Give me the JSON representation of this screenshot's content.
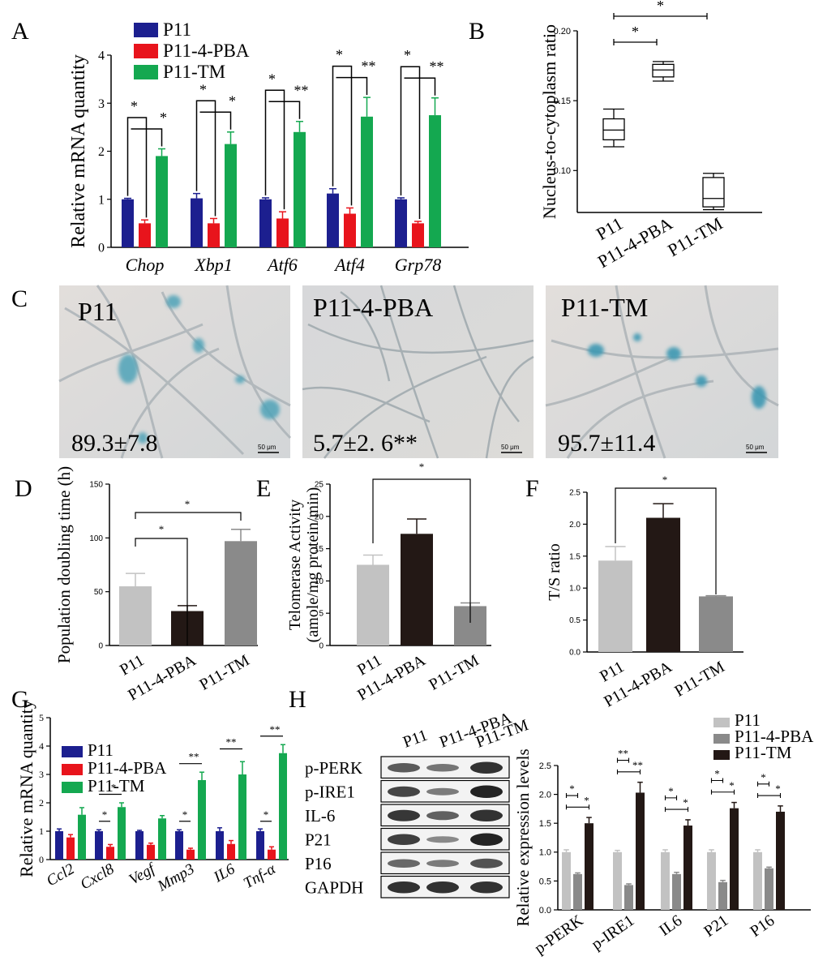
{
  "panel_labels": {
    "A": "A",
    "B": "B",
    "C": "C",
    "D": "D",
    "E": "E",
    "F": "F",
    "G": "G",
    "H": "H"
  },
  "colors": {
    "p11_dark": "#1c1f8f",
    "p11_4pba_red": "#e8141c",
    "p11_tm_green": "#14a850",
    "gray_light": "#c2c2c2",
    "gray_mid": "#8a8a8a",
    "black_bar": "#231815"
  },
  "chart_data": [
    {
      "id": "A",
      "type": "bar",
      "ylabel": "Relative mRNA quantity",
      "ylim": [
        0,
        4
      ],
      "yticks": [
        "0",
        "1",
        "2",
        "3",
        "4"
      ],
      "categories": [
        "Chop",
        "Xbp1",
        "Atf6",
        "Atf4",
        "Grp78"
      ],
      "legend": [
        "P11",
        "P11-4-PBA",
        "P11-TM"
      ],
      "series": [
        {
          "name": "P11",
          "values": [
            1.0,
            1.02,
            1.0,
            1.12,
            1.0
          ],
          "err": [
            0.02,
            0.1,
            0.03,
            0.1,
            0.03
          ]
        },
        {
          "name": "P11-4-PBA",
          "values": [
            0.5,
            0.5,
            0.6,
            0.7,
            0.5
          ],
          "err": [
            0.07,
            0.1,
            0.14,
            0.12,
            0.04
          ]
        },
        {
          "name": "P11-TM",
          "values": [
            1.9,
            2.15,
            2.4,
            2.72,
            2.75
          ],
          "err": [
            0.15,
            0.25,
            0.22,
            0.4,
            0.36
          ]
        }
      ],
      "sig": [
        [
          "*",
          "*"
        ],
        [
          "*",
          "*"
        ],
        [
          "*",
          "**"
        ],
        [
          "*",
          "**"
        ],
        [
          "*",
          "**"
        ]
      ]
    },
    {
      "id": "B",
      "type": "box",
      "ylabel": "Nucleus-to-cytoplasm ratio",
      "ylim": [
        0.07,
        0.2
      ],
      "yticks": [
        "0.10",
        "0.15",
        "0.20"
      ],
      "categories": [
        "P11",
        "P11-4-PBA",
        "P11-TM"
      ],
      "boxes": [
        {
          "min": 0.117,
          "q1": 0.122,
          "median": 0.129,
          "q3": 0.137,
          "max": 0.144
        },
        {
          "min": 0.164,
          "q1": 0.167,
          "median": 0.172,
          "q3": 0.176,
          "max": 0.178
        },
        {
          "min": 0.072,
          "q1": 0.074,
          "median": 0.08,
          "q3": 0.095,
          "max": 0.098
        }
      ],
      "sig": [
        "*",
        "*"
      ]
    },
    {
      "id": "D",
      "type": "bar",
      "ylabel": "Population doubling time (h)",
      "ylim": [
        0,
        150
      ],
      "yticks": [
        "0",
        "50",
        "100",
        "150"
      ],
      "categories": [
        "P11",
        "P11-4-PBA",
        "P11-TM"
      ],
      "values": [
        55,
        32,
        97
      ],
      "err": [
        12,
        5,
        11
      ],
      "sig": [
        "*",
        "*"
      ]
    },
    {
      "id": "E",
      "type": "bar",
      "ylabel_lines": [
        "Telomerase Activity",
        "(amole/mg protein/min)"
      ],
      "ylim": [
        0,
        25
      ],
      "yticks": [
        "0",
        "5",
        "10",
        "15",
        "20",
        "25"
      ],
      "categories": [
        "P11",
        "P11-4-PBA",
        "P11-TM"
      ],
      "values": [
        12.5,
        17.3,
        6.1
      ],
      "err": [
        1.5,
        2.3,
        0.5
      ],
      "sig": [
        "*"
      ]
    },
    {
      "id": "F",
      "type": "bar",
      "ylabel": "T/S ratio",
      "ylim": [
        0,
        2.5
      ],
      "yticks": [
        "0.0",
        "0.5",
        "1.0",
        "1.5",
        "2.0",
        "2.5"
      ],
      "categories": [
        "P11",
        "P11-4-PBA",
        "P11-TM"
      ],
      "values": [
        1.43,
        2.1,
        0.87
      ],
      "err": [
        0.22,
        0.22,
        0.01
      ],
      "sig": [
        "*"
      ]
    },
    {
      "id": "G",
      "type": "bar",
      "ylabel": "Relative mRNA quantity",
      "ylim": [
        0,
        5
      ],
      "yticks": [
        "0",
        "1",
        "2",
        "3",
        "4",
        "5"
      ],
      "categories": [
        "Ccl2",
        "Cxcl8",
        "Vegf",
        "Mmp3",
        "IL6",
        "Tnf-α"
      ],
      "legend": [
        "P11",
        "P11-4-PBA",
        "P11-TM"
      ],
      "series": [
        {
          "name": "P11",
          "values": [
            1.0,
            1.0,
            1.0,
            1.0,
            1.0,
            1.0
          ],
          "err": [
            0.08,
            0.05,
            0.03,
            0.05,
            0.12,
            0.08
          ]
        },
        {
          "name": "P11-4-PBA",
          "values": [
            0.78,
            0.45,
            0.52,
            0.35,
            0.55,
            0.35
          ],
          "err": [
            0.1,
            0.08,
            0.06,
            0.05,
            0.12,
            0.1
          ]
        },
        {
          "name": "P11-TM",
          "values": [
            1.58,
            1.85,
            1.45,
            2.8,
            3.0,
            3.75
          ],
          "err": [
            0.25,
            0.15,
            0.1,
            0.28,
            0.45,
            0.3
          ]
        }
      ],
      "sig": [
        null,
        [
          "*",
          "*"
        ],
        null,
        [
          "*",
          "**"
        ],
        [
          "**"
        ],
        [
          "*",
          "**"
        ]
      ]
    },
    {
      "id": "H",
      "type": "bar",
      "ylabel": "Relative expression levels",
      "ylim": [
        0,
        2.5
      ],
      "yticks": [
        "0.0",
        "0.5",
        "1.0",
        "1.5",
        "2.0",
        "2.5"
      ],
      "categories": [
        "p-PERK",
        "p-IRE1",
        "IL6",
        "P21",
        "P16"
      ],
      "legend": [
        "P11",
        "P11-4-PBA",
        "P11-TM"
      ],
      "series": [
        {
          "name": "P11",
          "values": [
            1.0,
            1.0,
            1.0,
            1.0,
            1.0
          ],
          "err": [
            0.04,
            0.03,
            0.04,
            0.04,
            0.04
          ]
        },
        {
          "name": "P11-4-PBA",
          "values": [
            0.62,
            0.43,
            0.62,
            0.48,
            0.72
          ],
          "err": [
            0.02,
            0.02,
            0.03,
            0.03,
            0.02
          ]
        },
        {
          "name": "P11-TM",
          "values": [
            1.5,
            2.03,
            1.46,
            1.76,
            1.7
          ],
          "err": [
            0.1,
            0.18,
            0.1,
            0.1,
            0.1
          ]
        }
      ],
      "sig": [
        [
          "*",
          "*"
        ],
        [
          "**",
          "**"
        ],
        [
          "*",
          "*"
        ],
        [
          "*",
          "*"
        ],
        [
          "*",
          "*"
        ]
      ]
    }
  ],
  "panel_c": {
    "images": [
      {
        "label": "P11",
        "value": "89.3±7.8",
        "scale": "50 μm"
      },
      {
        "label": "P11-4-PBA",
        "value": "5.7±2. 6**",
        "scale": "50 μm"
      },
      {
        "label": "P11-TM",
        "value": "95.7±11.4",
        "scale": "50 μm"
      }
    ]
  },
  "panel_h_blot": {
    "columns": [
      "P11",
      "P11-4-PBA",
      "P11-TM"
    ],
    "rows": [
      "p-PERK",
      "p-IRE1",
      "IL-6",
      "P21",
      "P16",
      "GAPDH"
    ]
  }
}
